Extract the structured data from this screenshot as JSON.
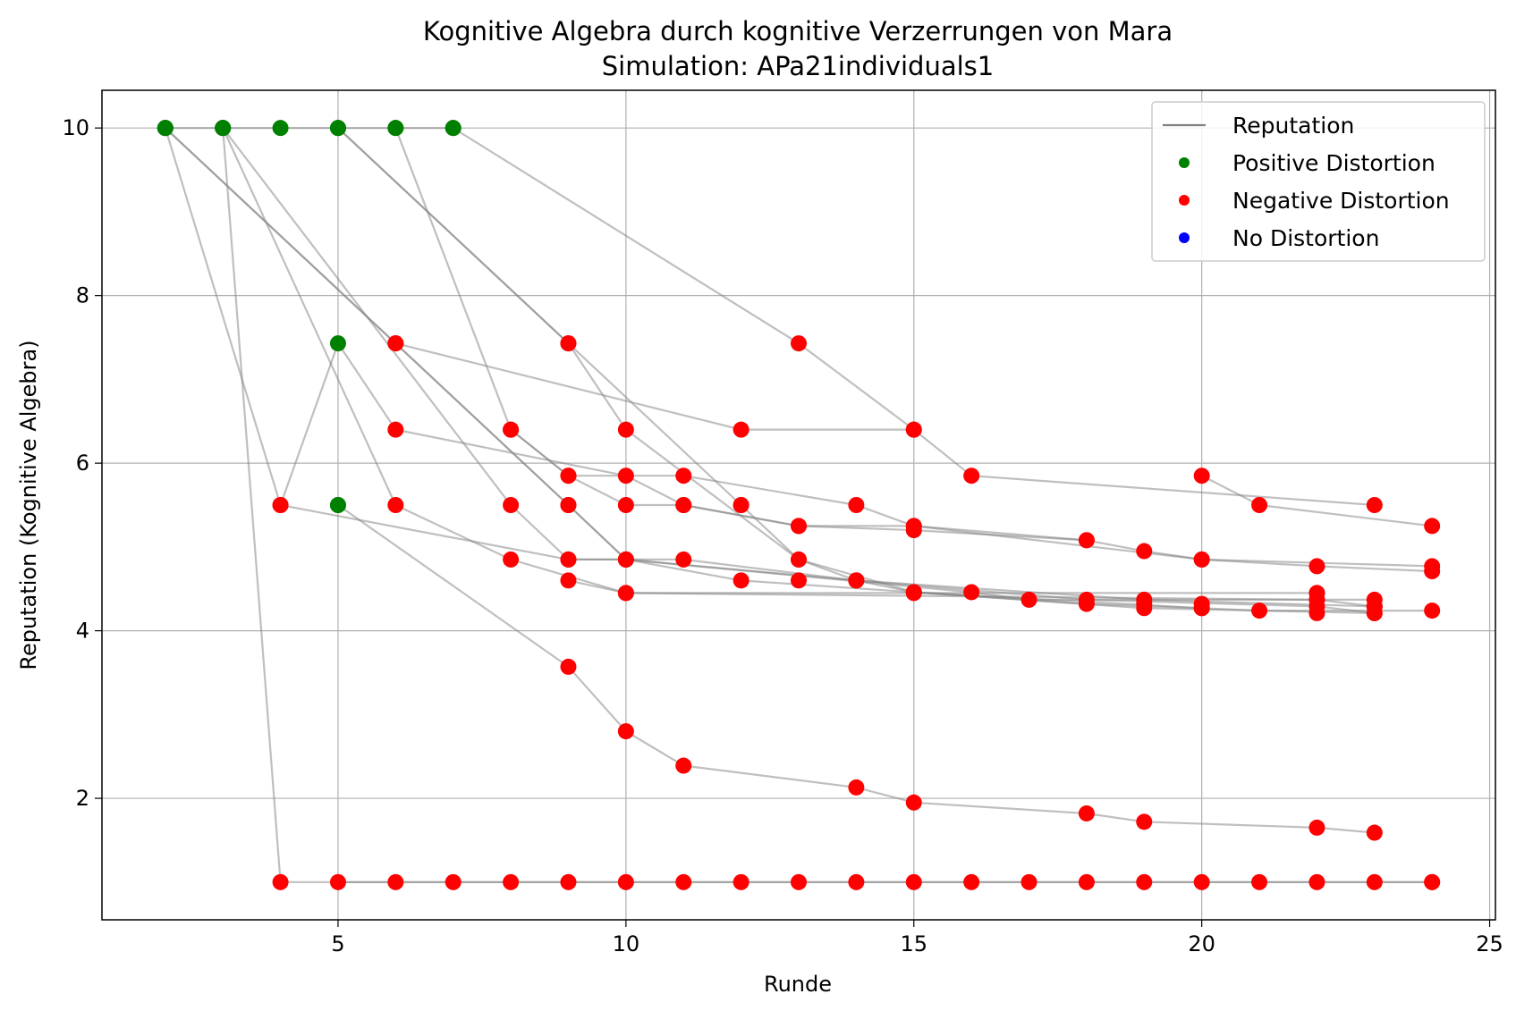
{
  "chart_data": {
    "type": "scatter",
    "title": "Kognitive Algebra durch kognitive Verzerrungen von Mara",
    "subtitle": "Simulation: APa21individuals1",
    "xlabel": "Runde",
    "ylabel": "Reputation (Kognitive Algebra)",
    "xlim": [
      0.9,
      25.1
    ],
    "ylim": [
      0.55,
      10.45
    ],
    "xticks": [
      5,
      10,
      15,
      20,
      25
    ],
    "yticks": [
      2,
      4,
      6,
      8,
      10
    ],
    "grid": true,
    "legend_position": "top-right",
    "legend": [
      {
        "label": "Reputation",
        "kind": "line",
        "color": "#808080"
      },
      {
        "label": "Positive Distortion",
        "kind": "dot",
        "color": "#008000"
      },
      {
        "label": "Negative Distortion",
        "kind": "dot",
        "color": "#ff0000"
      },
      {
        "label": "No Distortion",
        "kind": "dot",
        "color": "#0000ff"
      }
    ],
    "colors": {
      "positive": "#008000",
      "negative": "#ff0000",
      "none": "#0000ff",
      "line": "#808080"
    },
    "series": [
      {
        "points": [
          [
            2,
            10
          ],
          [
            3,
            10
          ],
          [
            4,
            10
          ],
          [
            5,
            10
          ],
          [
            6,
            10
          ],
          [
            7,
            10
          ]
        ],
        "distortion": [
          "positive",
          "positive",
          "positive",
          "positive",
          "positive",
          "positive"
        ]
      },
      {
        "points": [
          [
            2,
            10
          ],
          [
            4,
            5.5
          ],
          [
            5,
            7.43
          ],
          [
            6,
            6.4
          ],
          [
            10,
            5.85
          ],
          [
            11,
            5.5
          ],
          [
            13,
            5.25
          ],
          [
            15,
            5.2
          ],
          [
            18,
            5.08
          ]
        ],
        "distortion": [
          "positive",
          "negative",
          "positive",
          "negative",
          "negative",
          "negative",
          "negative",
          "negative",
          "negative"
        ]
      },
      {
        "points": [
          [
            2,
            10
          ],
          [
            6,
            7.43
          ],
          [
            12,
            6.4
          ],
          [
            15,
            6.4
          ]
        ],
        "distortion": [
          "positive",
          "negative",
          "negative",
          "negative"
        ]
      },
      {
        "points": [
          [
            2,
            10
          ],
          [
            9,
            5.5
          ],
          [
            10,
            4.85
          ],
          [
            12,
            4.6
          ],
          [
            15,
            4.46
          ],
          [
            20,
            4.27
          ]
        ],
        "distortion": [
          "positive",
          "negative",
          "negative",
          "negative",
          "negative",
          "negative"
        ]
      },
      {
        "points": [
          [
            3,
            10
          ],
          [
            4,
            1
          ],
          [
            24,
            1
          ]
        ],
        "distortion": [
          "positive",
          "negative",
          "negative"
        ]
      },
      {
        "points": [
          [
            3,
            10
          ],
          [
            6,
            5.5
          ],
          [
            8,
            4.85
          ],
          [
            10,
            4.45
          ],
          [
            15,
            4.45
          ],
          [
            22,
            4.45
          ]
        ],
        "distortion": [
          "positive",
          "negative",
          "negative",
          "negative",
          "negative",
          "negative"
        ]
      },
      {
        "points": [
          [
            3,
            10
          ],
          [
            8,
            5.5
          ],
          [
            9,
            4.85
          ],
          [
            10,
            4.85
          ],
          [
            14,
            4.6
          ],
          [
            19,
            4.37
          ],
          [
            23,
            4.29
          ]
        ],
        "distortion": [
          "positive",
          "negative",
          "negative",
          "negative",
          "negative",
          "negative",
          "negative"
        ]
      },
      {
        "points": [
          [
            5,
            10
          ],
          [
            9,
            7.43
          ],
          [
            10,
            6.4
          ],
          [
            13,
            4.85
          ],
          [
            14,
            4.6
          ],
          [
            18,
            4.37
          ],
          [
            22,
            4.29
          ],
          [
            23,
            4.21
          ]
        ],
        "distortion": [
          "positive",
          "negative",
          "negative",
          "negative",
          "negative",
          "negative",
          "negative",
          "negative"
        ]
      },
      {
        "points": [
          [
            5,
            10
          ],
          [
            9,
            7.43
          ],
          [
            12,
            5.5
          ],
          [
            13,
            4.85
          ],
          [
            15,
            4.46
          ],
          [
            19,
            4.27
          ],
          [
            23,
            4.21
          ]
        ],
        "distortion": [
          "positive",
          "negative",
          "negative",
          "negative",
          "negative",
          "negative",
          "negative"
        ]
      },
      {
        "points": [
          [
            6,
            10
          ],
          [
            8,
            6.4
          ],
          [
            9,
            5.85
          ],
          [
            10,
            5.5
          ],
          [
            11,
            5.5
          ],
          [
            13,
            5.25
          ],
          [
            15,
            5.25
          ],
          [
            18,
            5.08
          ],
          [
            19,
            4.95
          ],
          [
            20,
            4.85
          ],
          [
            24,
            4.77
          ]
        ],
        "distortion": [
          "positive",
          "negative",
          "negative",
          "negative",
          "negative",
          "negative",
          "negative",
          "negative",
          "negative",
          "negative",
          "negative"
        ]
      },
      {
        "points": [
          [
            7,
            10
          ],
          [
            13,
            7.43
          ],
          [
            15,
            6.4
          ],
          [
            16,
            5.85
          ],
          [
            23,
            5.5
          ]
        ],
        "distortion": [
          "positive",
          "negative",
          "negative",
          "negative",
          "negative"
        ]
      },
      {
        "points": [
          [
            5,
            5.5
          ],
          [
            9,
            3.57
          ],
          [
            10,
            2.8
          ],
          [
            11,
            2.39
          ],
          [
            14,
            2.13
          ],
          [
            15,
            1.95
          ],
          [
            18,
            1.82
          ],
          [
            19,
            1.72
          ],
          [
            22,
            1.65
          ],
          [
            23,
            1.59
          ]
        ],
        "distortion": [
          "positive",
          "negative",
          "negative",
          "negative",
          "negative",
          "negative",
          "negative",
          "negative",
          "negative",
          "negative"
        ]
      },
      {
        "points": [
          [
            4,
            5.5
          ],
          [
            9,
            4.85
          ],
          [
            11,
            4.85
          ],
          [
            14,
            4.6
          ],
          [
            15,
            4.46
          ],
          [
            18,
            4.32
          ],
          [
            20,
            4.27
          ],
          [
            21,
            4.24
          ],
          [
            24,
            4.24
          ]
        ],
        "distortion": [
          "negative",
          "negative",
          "negative",
          "negative",
          "negative",
          "negative",
          "negative",
          "negative",
          "negative"
        ]
      },
      {
        "points": [
          [
            6,
            7.43
          ],
          [
            9,
            5.5
          ],
          [
            10,
            4.85
          ],
          [
            16,
            4.46
          ],
          [
            17,
            4.37
          ],
          [
            22,
            4.37
          ],
          [
            23,
            4.37
          ]
        ],
        "distortion": [
          "negative",
          "negative",
          "negative",
          "negative",
          "negative",
          "negative",
          "negative"
        ]
      },
      {
        "points": [
          [
            5,
            1
          ],
          [
            7,
            1
          ],
          [
            10,
            1
          ],
          [
            14,
            1
          ],
          [
            18,
            1
          ],
          [
            22,
            1
          ],
          [
            24,
            1
          ]
        ],
        "distortion": [
          "negative",
          "negative",
          "negative",
          "negative",
          "negative",
          "negative",
          "negative"
        ]
      },
      {
        "points": [
          [
            8,
            6.4
          ],
          [
            9,
            5.85
          ],
          [
            11,
            5.85
          ],
          [
            14,
            5.5
          ],
          [
            15,
            5.25
          ],
          [
            20,
            4.85
          ],
          [
            22,
            4.77
          ],
          [
            24,
            4.71
          ]
        ],
        "distortion": [
          "negative",
          "negative",
          "negative",
          "negative",
          "negative",
          "negative",
          "negative",
          "negative"
        ]
      },
      {
        "points": [
          [
            9,
            4.6
          ],
          [
            10,
            4.45
          ],
          [
            22,
            4.37
          ],
          [
            23,
            4.29
          ]
        ],
        "distortion": [
          "negative",
          "negative",
          "negative",
          "negative"
        ]
      },
      {
        "points": [
          [
            20,
            5.85
          ],
          [
            21,
            5.5
          ],
          [
            24,
            5.25
          ]
        ],
        "distortion": [
          "negative",
          "negative",
          "negative"
        ]
      }
    ],
    "extra_points": [
      {
        "x": 5,
        "y": 5.5,
        "distortion": "positive"
      },
      {
        "x": 6,
        "y": 1,
        "distortion": "negative"
      },
      {
        "x": 8,
        "y": 1,
        "distortion": "negative"
      },
      {
        "x": 9,
        "y": 1,
        "distortion": "negative"
      },
      {
        "x": 11,
        "y": 1,
        "distortion": "negative"
      },
      {
        "x": 12,
        "y": 1,
        "distortion": "negative"
      },
      {
        "x": 13,
        "y": 1,
        "distortion": "negative"
      },
      {
        "x": 15,
        "y": 1,
        "distortion": "negative"
      },
      {
        "x": 16,
        "y": 1,
        "distortion": "negative"
      },
      {
        "x": 17,
        "y": 1,
        "distortion": "negative"
      },
      {
        "x": 19,
        "y": 1,
        "distortion": "negative"
      },
      {
        "x": 20,
        "y": 1,
        "distortion": "negative"
      },
      {
        "x": 21,
        "y": 1,
        "distortion": "negative"
      },
      {
        "x": 23,
        "y": 1,
        "distortion": "negative"
      },
      {
        "x": 12,
        "y": 5.5,
        "distortion": "negative"
      },
      {
        "x": 13,
        "y": 4.6,
        "distortion": "negative"
      },
      {
        "x": 22,
        "y": 4.21,
        "distortion": "negative"
      },
      {
        "x": 19,
        "y": 4.32,
        "distortion": "negative"
      },
      {
        "x": 20,
        "y": 4.32,
        "distortion": "negative"
      },
      {
        "x": 22,
        "y": 4.45,
        "distortion": "negative"
      },
      {
        "x": 23,
        "y": 4.29,
        "distortion": "negative"
      }
    ]
  }
}
